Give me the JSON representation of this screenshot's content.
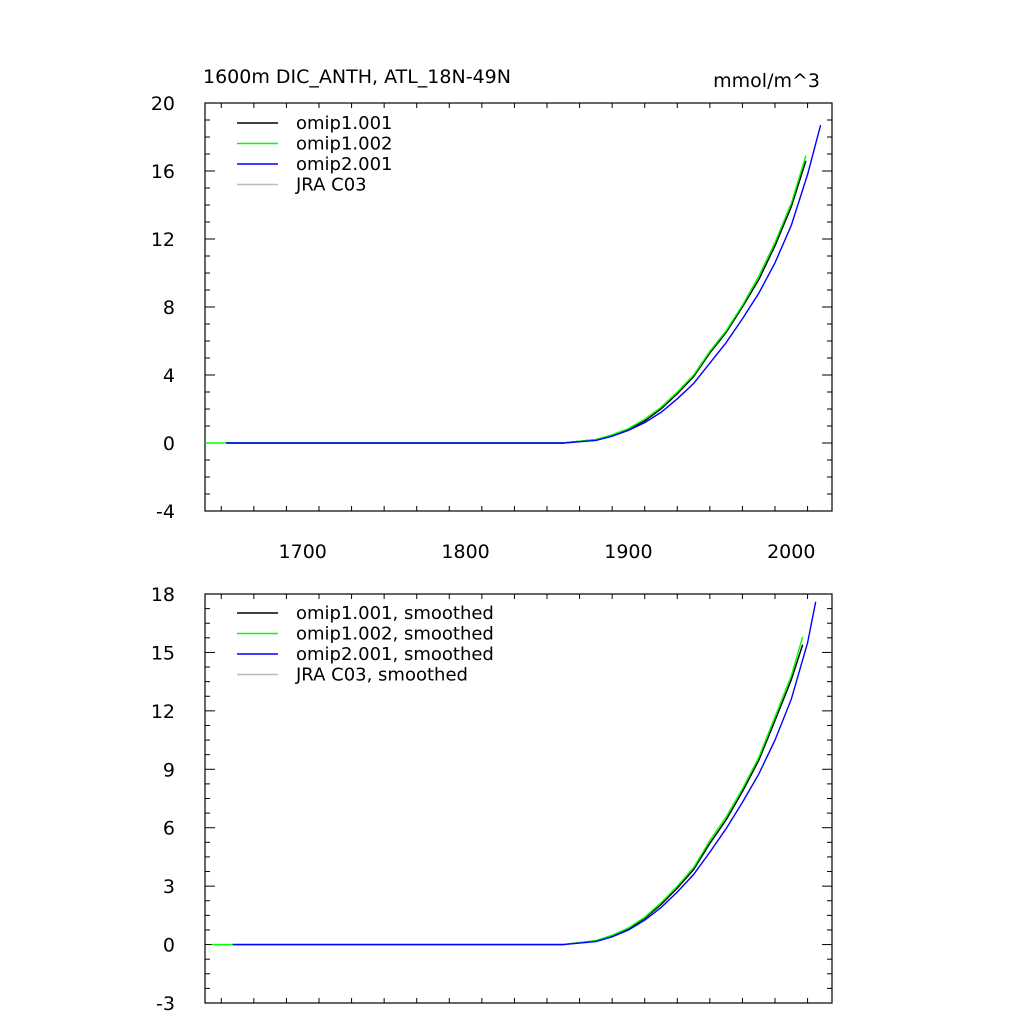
{
  "chart_data": [
    {
      "type": "line",
      "title": "1600m DIC_ANTH, ATL_18N-49N",
      "units": "mmol/m^3",
      "xlim": [
        1640,
        2025
      ],
      "ylim": [
        -4,
        20
      ],
      "x_ticks": [
        1700,
        1800,
        1900,
        2000
      ],
      "y_ticks": [
        -4,
        0,
        4,
        8,
        12,
        16,
        20
      ],
      "show_x_tick_labels": true,
      "grid": false,
      "legend_position": "top-left",
      "legend": [
        "omip1.001",
        "omip1.002",
        "omip2.001",
        "JRA C03"
      ],
      "series": [
        {
          "name": "omip1.001",
          "color": "#000000",
          "x": [
            1653,
            1860,
            1880,
            1890,
            1900,
            1910,
            1920,
            1930,
            1940,
            1950,
            1960,
            1970,
            1980,
            1990,
            2000,
            2009
          ],
          "y": [
            0,
            0,
            0.2,
            0.45,
            0.8,
            1.3,
            2.0,
            2.9,
            3.9,
            5.3,
            6.5,
            8.0,
            9.6,
            11.6,
            13.9,
            16.6
          ]
        },
        {
          "name": "omip1.002",
          "color": "#00ff00",
          "x": [
            1640,
            1860,
            1880,
            1890,
            1900,
            1910,
            1920,
            1930,
            1940,
            1950,
            1960,
            1970,
            1980,
            1990,
            2000,
            2009
          ],
          "y": [
            0,
            0,
            0.2,
            0.48,
            0.85,
            1.4,
            2.1,
            3.0,
            4.0,
            5.4,
            6.6,
            8.1,
            9.8,
            11.8,
            14.1,
            16.9
          ]
        },
        {
          "name": "omip2.001",
          "color": "#0000ff",
          "x": [
            1653,
            1860,
            1880,
            1890,
            1900,
            1910,
            1920,
            1930,
            1940,
            1950,
            1960,
            1970,
            1980,
            1990,
            2000,
            2010,
            2018
          ],
          "y": [
            0,
            0,
            0.15,
            0.4,
            0.75,
            1.2,
            1.8,
            2.6,
            3.5,
            4.7,
            5.9,
            7.3,
            8.8,
            10.6,
            12.8,
            15.8,
            18.7
          ]
        },
        {
          "name": "JRA C03",
          "color": "#bbbbbb",
          "x": [],
          "y": []
        }
      ]
    },
    {
      "type": "line",
      "xlim": [
        1640,
        2025
      ],
      "ylim": [
        -3,
        18
      ],
      "x_ticks": [
        1700,
        1800,
        1900,
        2000
      ],
      "y_ticks": [
        -3,
        0,
        3,
        6,
        9,
        12,
        15,
        18
      ],
      "show_x_tick_labels": false,
      "grid": false,
      "legend_position": "top-left",
      "legend": [
        "omip1.001, smoothed",
        "omip1.002, smoothed",
        "omip2.001, smoothed",
        "JRA C03, smoothed"
      ],
      "series": [
        {
          "name": "omip1.001, smoothed",
          "color": "#000000",
          "x": [
            1657,
            1860,
            1880,
            1890,
            1900,
            1910,
            1920,
            1930,
            1940,
            1950,
            1960,
            1970,
            1980,
            1990,
            2000,
            2007
          ],
          "y": [
            0,
            0,
            0.2,
            0.45,
            0.8,
            1.35,
            2.05,
            2.9,
            3.85,
            5.2,
            6.4,
            7.85,
            9.45,
            11.5,
            13.6,
            15.4
          ]
        },
        {
          "name": "omip1.002, smoothed",
          "color": "#00ff00",
          "x": [
            1644,
            1860,
            1880,
            1890,
            1900,
            1910,
            1920,
            1930,
            1940,
            1950,
            1960,
            1970,
            1980,
            1990,
            2000,
            2007
          ],
          "y": [
            0,
            0,
            0.2,
            0.48,
            0.85,
            1.4,
            2.15,
            3.0,
            3.95,
            5.35,
            6.55,
            8.0,
            9.6,
            11.7,
            13.8,
            15.8
          ]
        },
        {
          "name": "omip2.001, smoothed",
          "color": "#0000ff",
          "x": [
            1657,
            1860,
            1880,
            1890,
            1900,
            1910,
            1920,
            1930,
            1940,
            1950,
            1960,
            1970,
            1980,
            1990,
            2000,
            2010,
            2015
          ],
          "y": [
            0,
            0,
            0.15,
            0.4,
            0.75,
            1.25,
            1.9,
            2.7,
            3.6,
            4.75,
            5.95,
            7.3,
            8.75,
            10.5,
            12.6,
            15.5,
            17.6
          ]
        },
        {
          "name": "JRA C03, smoothed",
          "color": "#bbbbbb",
          "x": [],
          "y": []
        }
      ]
    }
  ]
}
